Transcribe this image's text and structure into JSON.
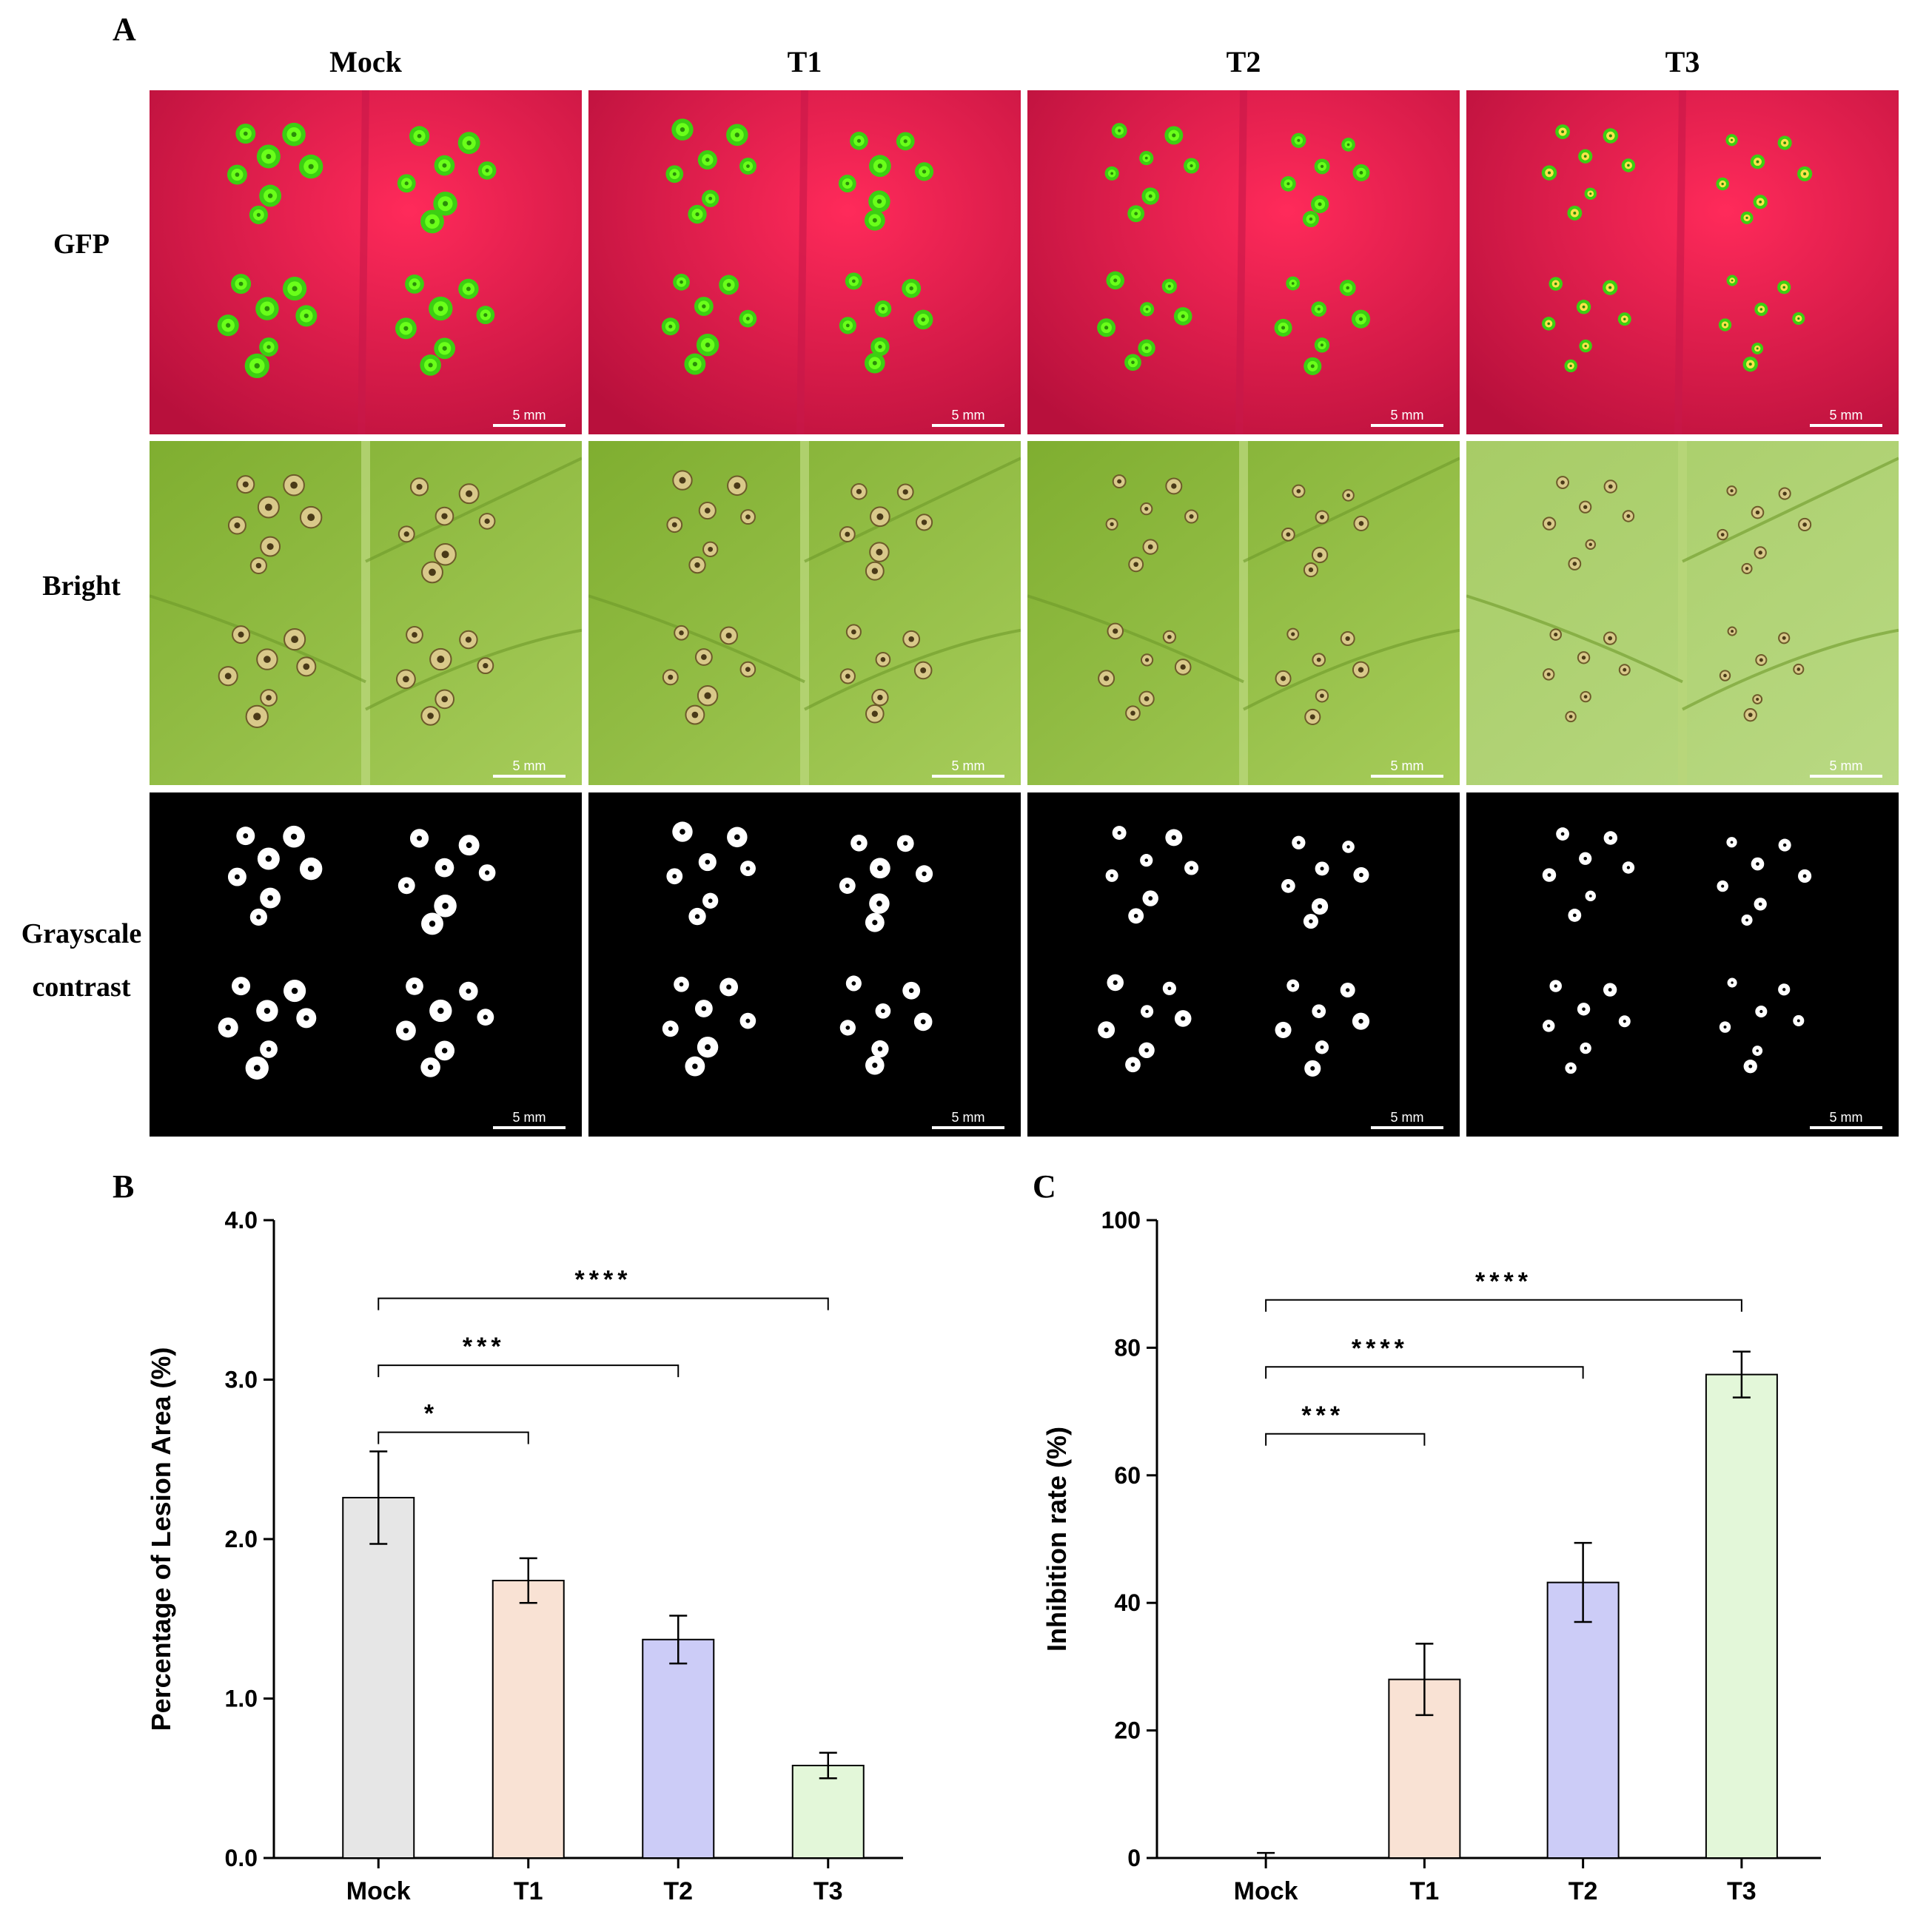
{
  "panel_a": {
    "letter": "A",
    "columns": [
      "Mock",
      "T1",
      "T2",
      "T3"
    ],
    "rows": [
      {
        "label": "GFP",
        "kind": "gfp"
      },
      {
        "label": "Bright",
        "kind": "bright"
      },
      {
        "label_line1": "Grayscale",
        "label_line2": "contrast",
        "kind": "gray"
      }
    ],
    "scale_bar": "5 mm",
    "colors": {
      "gfp_bg": "#e0184c",
      "gfp_spot": "#6aff1a",
      "bright_bg": "#8fbf3e",
      "gray_bg": "#000000"
    }
  },
  "chart_data": [
    {
      "panel": "B",
      "type": "bar",
      "categories": [
        "Mock",
        "T1",
        "T2",
        "T3"
      ],
      "values": [
        2.26,
        1.74,
        1.37,
        0.58
      ],
      "errors": [
        0.29,
        0.14,
        0.15,
        0.08
      ],
      "colors": [
        "#e6e6e6",
        "#f9e2d4",
        "#ccccf7",
        "#e3f7d9"
      ],
      "ylabel": "Percentage of Lesion Area (%)",
      "xlabel": "",
      "ylim": [
        0,
        4.0
      ],
      "yticks": [
        "0.0",
        "1.0",
        "2.0",
        "3.0",
        "4.0"
      ],
      "ytick_values": [
        0,
        1,
        2,
        3,
        4
      ],
      "significance": [
        {
          "from": 0,
          "to": 1,
          "y": 2.67,
          "label": "*"
        },
        {
          "from": 0,
          "to": 2,
          "y": 3.09,
          "label": "***"
        },
        {
          "from": 0,
          "to": 3,
          "y": 3.51,
          "label": "****"
        }
      ]
    },
    {
      "panel": "C",
      "type": "bar",
      "categories": [
        "Mock",
        "T1",
        "T2",
        "T3"
      ],
      "values": [
        0,
        28,
        43.2,
        75.8
      ],
      "errors": [
        0.8,
        5.6,
        6.2,
        3.6
      ],
      "colors": [
        "#e6e6e6",
        "#f9e2d4",
        "#ccccf7",
        "#e3f7d9"
      ],
      "ylabel": "Inhibition rate (%)",
      "xlabel": "",
      "ylim": [
        0,
        100
      ],
      "yticks": [
        "0",
        "20",
        "40",
        "60",
        "80",
        "100"
      ],
      "ytick_values": [
        0,
        20,
        40,
        60,
        80,
        100
      ],
      "significance": [
        {
          "from": 0,
          "to": 1,
          "y": 66.5,
          "label": "***"
        },
        {
          "from": 0,
          "to": 2,
          "y": 77,
          "label": "****"
        },
        {
          "from": 0,
          "to": 3,
          "y": 87.5,
          "label": "****"
        }
      ]
    }
  ]
}
